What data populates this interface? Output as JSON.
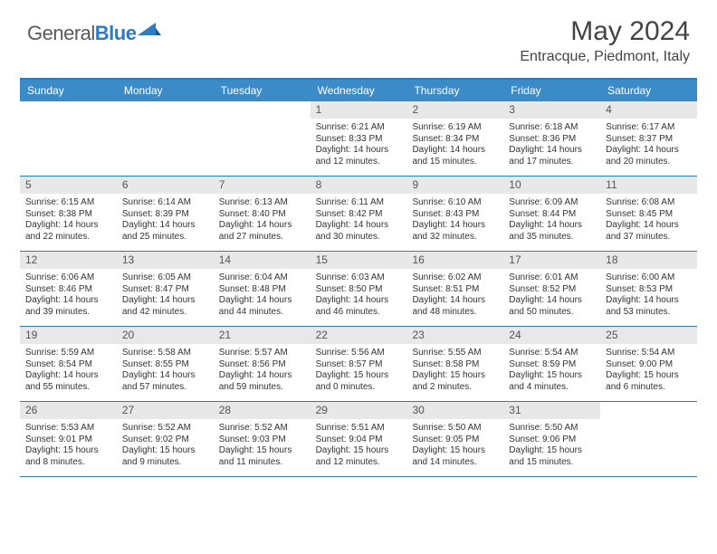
{
  "logo": {
    "part1": "General",
    "part2": "Blue"
  },
  "title": "May 2024",
  "location": "Entracque, Piedmont, Italy",
  "weekdays": [
    "Sunday",
    "Monday",
    "Tuesday",
    "Wednesday",
    "Thursday",
    "Friday",
    "Saturday"
  ],
  "colors": {
    "header_bar": "#3b8bc9",
    "border": "#2d7bc0",
    "daynum_bg": "#e8e8e8"
  },
  "weeks": [
    [
      {
        "n": "",
        "sr": "",
        "ss": "",
        "dl": ""
      },
      {
        "n": "",
        "sr": "",
        "ss": "",
        "dl": ""
      },
      {
        "n": "",
        "sr": "",
        "ss": "",
        "dl": ""
      },
      {
        "n": "1",
        "sr": "Sunrise: 6:21 AM",
        "ss": "Sunset: 8:33 PM",
        "dl": "Daylight: 14 hours and 12 minutes."
      },
      {
        "n": "2",
        "sr": "Sunrise: 6:19 AM",
        "ss": "Sunset: 8:34 PM",
        "dl": "Daylight: 14 hours and 15 minutes."
      },
      {
        "n": "3",
        "sr": "Sunrise: 6:18 AM",
        "ss": "Sunset: 8:36 PM",
        "dl": "Daylight: 14 hours and 17 minutes."
      },
      {
        "n": "4",
        "sr": "Sunrise: 6:17 AM",
        "ss": "Sunset: 8:37 PM",
        "dl": "Daylight: 14 hours and 20 minutes."
      }
    ],
    [
      {
        "n": "5",
        "sr": "Sunrise: 6:15 AM",
        "ss": "Sunset: 8:38 PM",
        "dl": "Daylight: 14 hours and 22 minutes."
      },
      {
        "n": "6",
        "sr": "Sunrise: 6:14 AM",
        "ss": "Sunset: 8:39 PM",
        "dl": "Daylight: 14 hours and 25 minutes."
      },
      {
        "n": "7",
        "sr": "Sunrise: 6:13 AM",
        "ss": "Sunset: 8:40 PM",
        "dl": "Daylight: 14 hours and 27 minutes."
      },
      {
        "n": "8",
        "sr": "Sunrise: 6:11 AM",
        "ss": "Sunset: 8:42 PM",
        "dl": "Daylight: 14 hours and 30 minutes."
      },
      {
        "n": "9",
        "sr": "Sunrise: 6:10 AM",
        "ss": "Sunset: 8:43 PM",
        "dl": "Daylight: 14 hours and 32 minutes."
      },
      {
        "n": "10",
        "sr": "Sunrise: 6:09 AM",
        "ss": "Sunset: 8:44 PM",
        "dl": "Daylight: 14 hours and 35 minutes."
      },
      {
        "n": "11",
        "sr": "Sunrise: 6:08 AM",
        "ss": "Sunset: 8:45 PM",
        "dl": "Daylight: 14 hours and 37 minutes."
      }
    ],
    [
      {
        "n": "12",
        "sr": "Sunrise: 6:06 AM",
        "ss": "Sunset: 8:46 PM",
        "dl": "Daylight: 14 hours and 39 minutes."
      },
      {
        "n": "13",
        "sr": "Sunrise: 6:05 AM",
        "ss": "Sunset: 8:47 PM",
        "dl": "Daylight: 14 hours and 42 minutes."
      },
      {
        "n": "14",
        "sr": "Sunrise: 6:04 AM",
        "ss": "Sunset: 8:48 PM",
        "dl": "Daylight: 14 hours and 44 minutes."
      },
      {
        "n": "15",
        "sr": "Sunrise: 6:03 AM",
        "ss": "Sunset: 8:50 PM",
        "dl": "Daylight: 14 hours and 46 minutes."
      },
      {
        "n": "16",
        "sr": "Sunrise: 6:02 AM",
        "ss": "Sunset: 8:51 PM",
        "dl": "Daylight: 14 hours and 48 minutes."
      },
      {
        "n": "17",
        "sr": "Sunrise: 6:01 AM",
        "ss": "Sunset: 8:52 PM",
        "dl": "Daylight: 14 hours and 50 minutes."
      },
      {
        "n": "18",
        "sr": "Sunrise: 6:00 AM",
        "ss": "Sunset: 8:53 PM",
        "dl": "Daylight: 14 hours and 53 minutes."
      }
    ],
    [
      {
        "n": "19",
        "sr": "Sunrise: 5:59 AM",
        "ss": "Sunset: 8:54 PM",
        "dl": "Daylight: 14 hours and 55 minutes."
      },
      {
        "n": "20",
        "sr": "Sunrise: 5:58 AM",
        "ss": "Sunset: 8:55 PM",
        "dl": "Daylight: 14 hours and 57 minutes."
      },
      {
        "n": "21",
        "sr": "Sunrise: 5:57 AM",
        "ss": "Sunset: 8:56 PM",
        "dl": "Daylight: 14 hours and 59 minutes."
      },
      {
        "n": "22",
        "sr": "Sunrise: 5:56 AM",
        "ss": "Sunset: 8:57 PM",
        "dl": "Daylight: 15 hours and 0 minutes."
      },
      {
        "n": "23",
        "sr": "Sunrise: 5:55 AM",
        "ss": "Sunset: 8:58 PM",
        "dl": "Daylight: 15 hours and 2 minutes."
      },
      {
        "n": "24",
        "sr": "Sunrise: 5:54 AM",
        "ss": "Sunset: 8:59 PM",
        "dl": "Daylight: 15 hours and 4 minutes."
      },
      {
        "n": "25",
        "sr": "Sunrise: 5:54 AM",
        "ss": "Sunset: 9:00 PM",
        "dl": "Daylight: 15 hours and 6 minutes."
      }
    ],
    [
      {
        "n": "26",
        "sr": "Sunrise: 5:53 AM",
        "ss": "Sunset: 9:01 PM",
        "dl": "Daylight: 15 hours and 8 minutes."
      },
      {
        "n": "27",
        "sr": "Sunrise: 5:52 AM",
        "ss": "Sunset: 9:02 PM",
        "dl": "Daylight: 15 hours and 9 minutes."
      },
      {
        "n": "28",
        "sr": "Sunrise: 5:52 AM",
        "ss": "Sunset: 9:03 PM",
        "dl": "Daylight: 15 hours and 11 minutes."
      },
      {
        "n": "29",
        "sr": "Sunrise: 5:51 AM",
        "ss": "Sunset: 9:04 PM",
        "dl": "Daylight: 15 hours and 12 minutes."
      },
      {
        "n": "30",
        "sr": "Sunrise: 5:50 AM",
        "ss": "Sunset: 9:05 PM",
        "dl": "Daylight: 15 hours and 14 minutes."
      },
      {
        "n": "31",
        "sr": "Sunrise: 5:50 AM",
        "ss": "Sunset: 9:06 PM",
        "dl": "Daylight: 15 hours and 15 minutes."
      },
      {
        "n": "",
        "sr": "",
        "ss": "",
        "dl": ""
      }
    ]
  ]
}
